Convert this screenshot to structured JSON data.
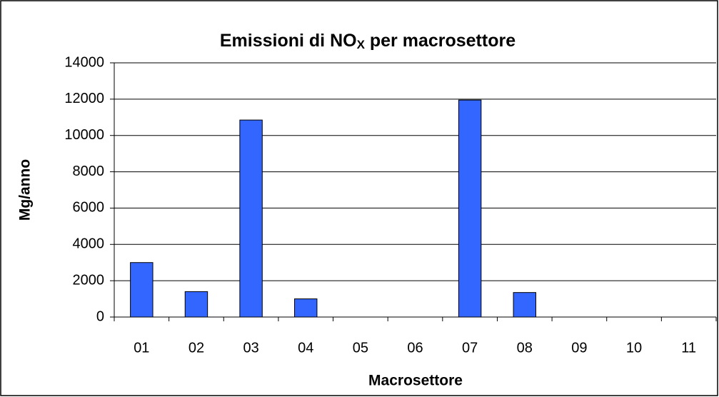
{
  "chart_data": {
    "type": "bar",
    "title": [
      "Emissioni di NO",
      "X",
      " per macrosettore"
    ],
    "x_label": "Macrosettore",
    "y_label": "Mg/anno",
    "categories": [
      "01",
      "02",
      "03",
      "04",
      "05",
      "06",
      "07",
      "08",
      "09",
      "10",
      "11"
    ],
    "values": [
      3000,
      1400,
      10850,
      1000,
      0,
      0,
      11950,
      1350,
      0,
      0,
      0
    ],
    "color": "#3366ff",
    "ylim": [
      0,
      14000
    ],
    "yticks": [
      0,
      2000,
      4000,
      6000,
      8000,
      10000,
      12000,
      14000
    ],
    "grid": true
  }
}
